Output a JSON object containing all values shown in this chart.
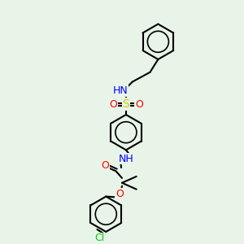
{
  "bg_color": "#e8f4e8",
  "bond_color": "#000000",
  "bond_lw": 1.5,
  "atom_colors": {
    "N": "#0000ff",
    "O": "#ff0000",
    "S": "#cccc00",
    "Cl": "#00cc00",
    "H": "#4a9090",
    "C": "#000000"
  },
  "font_size": 8.5
}
